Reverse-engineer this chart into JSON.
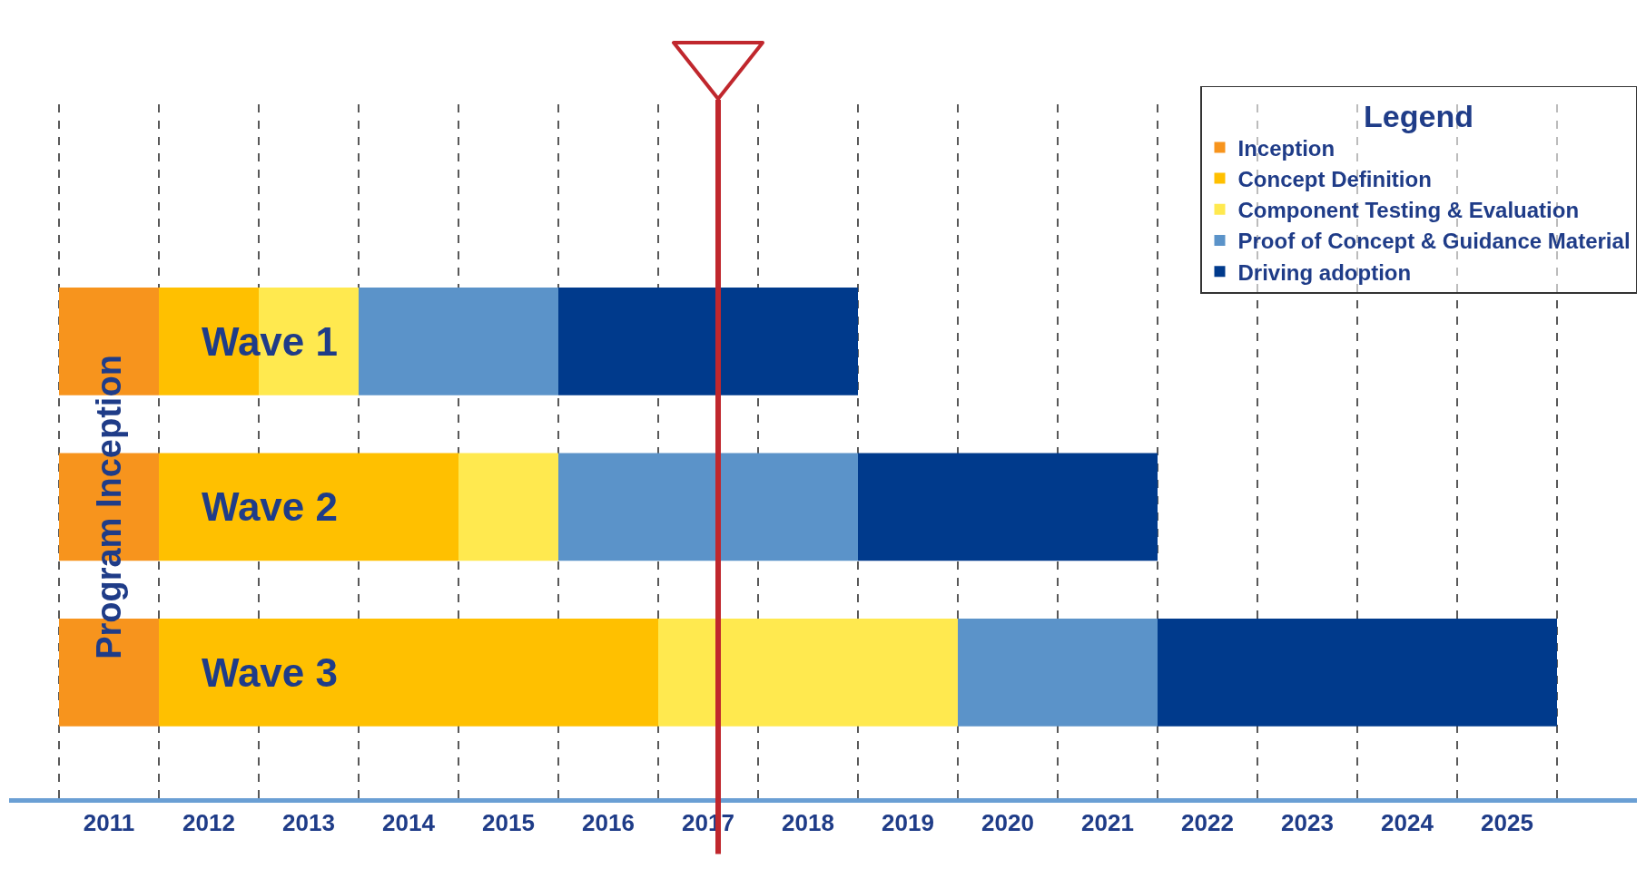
{
  "chart_data": {
    "type": "bar",
    "orientation": "horizontal",
    "categories": [
      "Wave 1",
      "Wave 2",
      "Wave 3"
    ],
    "series": [
      {
        "name": "Inception",
        "color": "#f7941d",
        "base": [
          2011,
          2011,
          2011
        ],
        "values": [
          1,
          1,
          1
        ]
      },
      {
        "name": "Concept Definition",
        "color": "#ffc000",
        "base": [
          2012,
          2012,
          2012
        ],
        "values": [
          1,
          3,
          5
        ]
      },
      {
        "name": "Component Testing & Evaluation",
        "color": "#ffe94f",
        "base": [
          2013,
          2015,
          2017
        ],
        "values": [
          1,
          1,
          3
        ]
      },
      {
        "name": "Proof of Concept & Guidance Material",
        "color": "#5b93c9",
        "base": [
          2014,
          2016,
          2020
        ],
        "values": [
          2,
          3,
          2
        ]
      },
      {
        "name": "Driving adoption",
        "color": "#003a8c",
        "base": [
          2016,
          2019,
          2022
        ],
        "values": [
          3,
          3,
          4
        ]
      }
    ],
    "xlim": [
      2010.5,
      2026.8
    ],
    "xticks": [
      {
        "value": 2011.5,
        "label": "2011"
      },
      {
        "value": 2012.5,
        "label": "2012"
      },
      {
        "value": 2013.5,
        "label": "2013"
      },
      {
        "value": 2014.5,
        "label": "2014"
      },
      {
        "value": 2015.5,
        "label": "2015"
      },
      {
        "value": 2016.5,
        "label": "2016"
      },
      {
        "value": 2017.5,
        "label": "2017"
      },
      {
        "value": 2018.5,
        "label": "2018"
      },
      {
        "value": 2019.5,
        "label": "2019"
      },
      {
        "value": 2020.5,
        "label": "2020"
      },
      {
        "value": 2021.5,
        "label": "2021"
      },
      {
        "value": 2022.5,
        "label": "2022"
      },
      {
        "value": 2023.5,
        "label": "2023"
      },
      {
        "value": 2024.5,
        "label": "2024"
      },
      {
        "value": 2025.5,
        "label": "2025"
      }
    ],
    "tick_labels": "x",
    "legend": "top right",
    "legend_title": "Legend",
    "annotations": [
      "Program Inception"
    ],
    "ref_lines": [
      {
        "axis": "x",
        "value": 2011,
        "line_style": "dashed",
        "color": "#000000"
      },
      {
        "axis": "x",
        "value": 2012,
        "line_style": "dashed",
        "color": "#000000"
      },
      {
        "axis": "x",
        "value": 2013,
        "line_style": "dashed",
        "color": "#000000"
      },
      {
        "axis": "x",
        "value": 2014,
        "line_style": "dashed",
        "color": "#000000"
      },
      {
        "axis": "x",
        "value": 2015,
        "line_style": "dashed",
        "color": "#000000"
      },
      {
        "axis": "x",
        "value": 2016,
        "line_style": "dashed",
        "color": "#000000"
      },
      {
        "axis": "x",
        "value": 2017,
        "line_style": "dashed",
        "color": "#000000"
      },
      {
        "axis": "x",
        "value": 2018,
        "line_style": "dashed",
        "color": "#000000"
      },
      {
        "axis": "x",
        "value": 2019,
        "line_style": "dashed",
        "color": "#000000"
      },
      {
        "axis": "x",
        "value": 2020,
        "line_style": "dashed",
        "color": "#000000"
      },
      {
        "axis": "x",
        "value": 2021,
        "line_style": "dashed",
        "color": "#000000"
      },
      {
        "axis": "x",
        "value": 2022,
        "line_style": "dashed",
        "color": "#000000"
      },
      {
        "axis": "x",
        "value": 2023,
        "line_style": "dashed",
        "color": "#000000"
      },
      {
        "axis": "x",
        "value": 2024,
        "line_style": "dashed",
        "color": "#000000"
      },
      {
        "axis": "x",
        "value": 2025,
        "line_style": "dashed",
        "color": "#000000"
      },
      {
        "axis": "x",
        "value": 2026,
        "line_style": "dashed",
        "color": "#000000"
      },
      {
        "axis": "x",
        "value": 2017.6,
        "line_style": "solid",
        "color": "#c0272d"
      }
    ]
  }
}
